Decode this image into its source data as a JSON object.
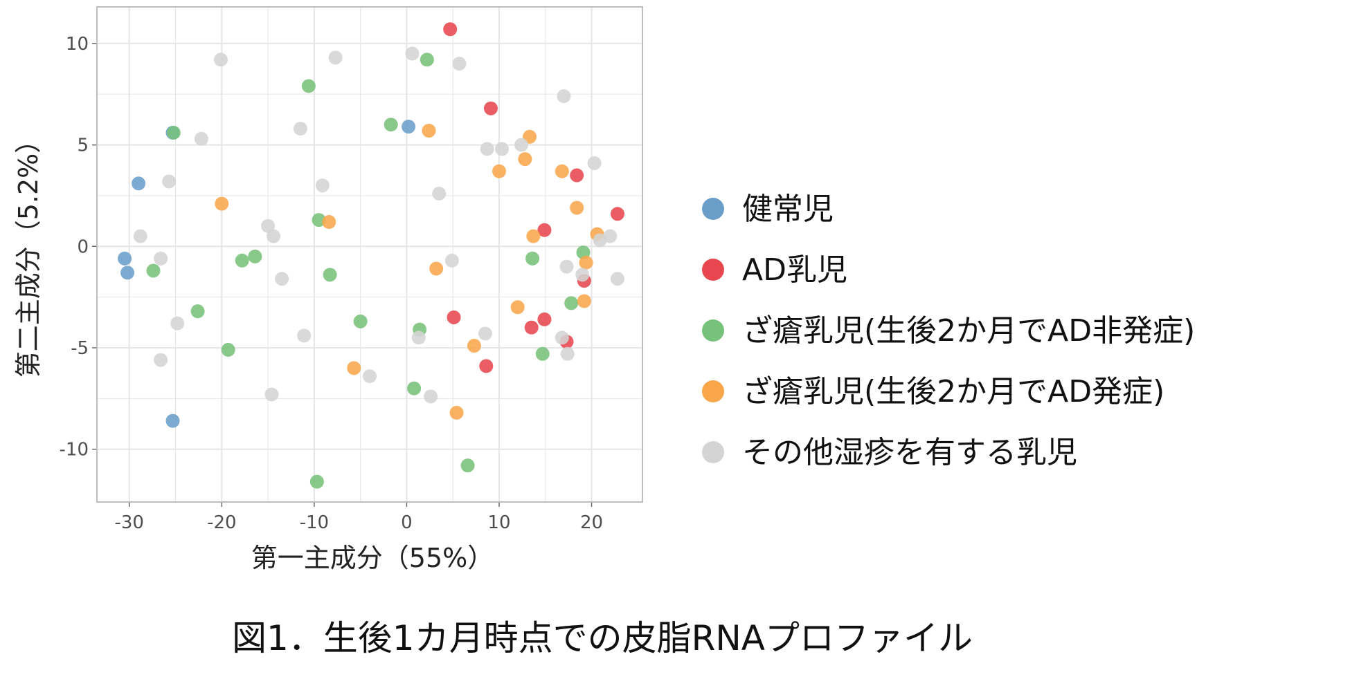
{
  "caption": "図1．生後1カ月時点での皮脂RNAプロファイル",
  "colors": {
    "healthy": "#6a9ec9",
    "ad": "#e8474f",
    "acne_non": "#77c27a",
    "acne_onset": "#f9a64b",
    "other": "#d4d4d4",
    "grid": "#e5e5e5",
    "panel_border": "#bdbdbd"
  },
  "chart_data": {
    "type": "scatter",
    "xlabel": "第一主成分（55%）",
    "ylabel": "第二主成分（5.2%）",
    "xlim": [
      -33.5,
      25.5
    ],
    "ylim": [
      -12.6,
      11.8
    ],
    "xticks": [
      -30,
      -20,
      -10,
      0,
      10,
      20
    ],
    "yticks": [
      10,
      5,
      0,
      -5,
      -10
    ],
    "grid": true,
    "legend_position": "right",
    "series": [
      {
        "name": "健常児",
        "color_key": "healthy",
        "points": [
          [
            -30.5,
            -0.6
          ],
          [
            -30.2,
            -1.3
          ],
          [
            -29.0,
            3.1
          ],
          [
            -25.3,
            5.6
          ],
          [
            -25.3,
            -8.6
          ],
          [
            0.2,
            5.9
          ]
        ]
      },
      {
        "name": "AD乳児",
        "color_key": "ad",
        "points": [
          [
            4.7,
            10.7
          ],
          [
            9.1,
            6.8
          ],
          [
            18.4,
            3.5
          ],
          [
            22.8,
            1.6
          ],
          [
            14.9,
            0.8
          ],
          [
            19.2,
            -1.7
          ],
          [
            5.1,
            -3.5
          ],
          [
            13.5,
            -4.0
          ],
          [
            14.9,
            -3.6
          ],
          [
            17.3,
            -4.7
          ],
          [
            8.6,
            -5.9
          ]
        ]
      },
      {
        "name": "ざ瘡乳児(生後2か月でAD非発症)",
        "color_key": "acne_non",
        "points": [
          [
            -10.6,
            7.9
          ],
          [
            -25.2,
            5.6
          ],
          [
            -1.7,
            6.0
          ],
          [
            2.2,
            9.2
          ],
          [
            -9.5,
            1.3
          ],
          [
            -8.3,
            -1.4
          ],
          [
            -17.8,
            -0.7
          ],
          [
            -16.4,
            -0.5
          ],
          [
            -27.4,
            -1.2
          ],
          [
            -22.6,
            -3.2
          ],
          [
            -19.3,
            -5.1
          ],
          [
            -5.0,
            -3.7
          ],
          [
            1.4,
            -4.1
          ],
          [
            13.6,
            -0.6
          ],
          [
            19.1,
            -0.3
          ],
          [
            17.8,
            -2.8
          ],
          [
            14.7,
            -5.3
          ],
          [
            0.8,
            -7.0
          ],
          [
            6.6,
            -10.8
          ],
          [
            -9.7,
            -11.6
          ]
        ]
      },
      {
        "name": "ざ瘡乳児(生後2か月でAD発症)",
        "color_key": "acne_onset",
        "points": [
          [
            2.4,
            5.7
          ],
          [
            13.3,
            5.4
          ],
          [
            12.8,
            4.3
          ],
          [
            10.0,
            3.7
          ],
          [
            16.8,
            3.7
          ],
          [
            18.4,
            1.9
          ],
          [
            -20.0,
            2.1
          ],
          [
            -8.4,
            1.2
          ],
          [
            13.7,
            0.5
          ],
          [
            20.6,
            0.6
          ],
          [
            19.4,
            -0.8
          ],
          [
            3.2,
            -1.1
          ],
          [
            12.0,
            -3.0
          ],
          [
            19.2,
            -2.7
          ],
          [
            7.3,
            -4.9
          ],
          [
            -5.7,
            -6.0
          ],
          [
            5.4,
            -8.2
          ]
        ]
      },
      {
        "name": "その他湿疹を有する乳児",
        "color_key": "other",
        "points": [
          [
            -20.1,
            9.2
          ],
          [
            -7.7,
            9.3
          ],
          [
            0.6,
            9.5
          ],
          [
            5.7,
            9.0
          ],
          [
            17.0,
            7.4
          ],
          [
            -11.5,
            5.8
          ],
          [
            -22.2,
            5.3
          ],
          [
            12.4,
            5.0
          ],
          [
            8.7,
            4.8
          ],
          [
            10.3,
            4.8
          ],
          [
            20.3,
            4.1
          ],
          [
            -25.7,
            3.2
          ],
          [
            -9.1,
            3.0
          ],
          [
            3.5,
            2.6
          ],
          [
            -15.0,
            1.0
          ],
          [
            -28.8,
            0.5
          ],
          [
            -14.4,
            0.5
          ],
          [
            20.9,
            0.3
          ],
          [
            22.0,
            0.5
          ],
          [
            -26.6,
            -0.6
          ],
          [
            4.9,
            -0.7
          ],
          [
            17.3,
            -1.0
          ],
          [
            -13.5,
            -1.6
          ],
          [
            22.8,
            -1.6
          ],
          [
            19.0,
            -1.4
          ],
          [
            -24.8,
            -3.8
          ],
          [
            -11.1,
            -4.4
          ],
          [
            8.5,
            -4.3
          ],
          [
            1.3,
            -4.5
          ],
          [
            16.8,
            -4.5
          ],
          [
            17.4,
            -5.3
          ],
          [
            -26.6,
            -5.6
          ],
          [
            -4.0,
            -6.4
          ],
          [
            -14.6,
            -7.3
          ],
          [
            2.6,
            -7.4
          ]
        ]
      }
    ]
  }
}
